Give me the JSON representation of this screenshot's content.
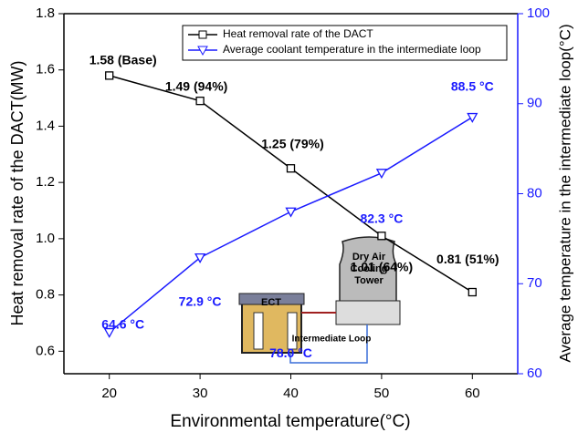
{
  "chart_data": {
    "type": "line",
    "x": [
      20,
      30,
      40,
      50,
      60
    ],
    "xlabel": "Environmental temperature(°C)",
    "ylabel": "Heat removal rate of the DACT(MW)",
    "y2label": "Average temperature in the intermediate loop(°C)",
    "xlim": [
      15,
      65
    ],
    "xticks": [
      20,
      30,
      40,
      50,
      60
    ],
    "ylim": [
      0.52,
      1.8
    ],
    "yticks": [
      0.6,
      0.8,
      {
        "value": 1,
        "label": "1.0"
      },
      1.2,
      1.4,
      1.6,
      1.8
    ],
    "y2lim": [
      60,
      100
    ],
    "y2ticks": [
      60,
      70,
      80,
      90,
      100
    ],
    "legend": "top-right",
    "series": [
      {
        "name": "Heat removal rate of the DACT",
        "color": "#000000",
        "marker": "square",
        "values": [
          1.58,
          1.49,
          1.25,
          1.01,
          0.81
        ],
        "value_labels": [
          "1.58 (Base)",
          "1.49 (94%)",
          "1.25 (79%)",
          "1.01 (64%)",
          "0.81 (51%)"
        ]
      },
      {
        "name": "Average coolant temperature in the intermediate loop",
        "color": "#1a1aff",
        "marker": "triangle-down",
        "axis": "y2",
        "values": [
          64.6,
          72.9,
          78.0,
          82.3,
          88.5
        ],
        "value_labels": [
          "64.6 °C",
          "72.9 °C",
          "78.0 °C",
          "82.3 °C",
          "88.5 °C"
        ]
      }
    ],
    "annotations": [
      "ECT",
      "Dry Air Cooling Tower",
      "Intermediate Loop"
    ]
  }
}
